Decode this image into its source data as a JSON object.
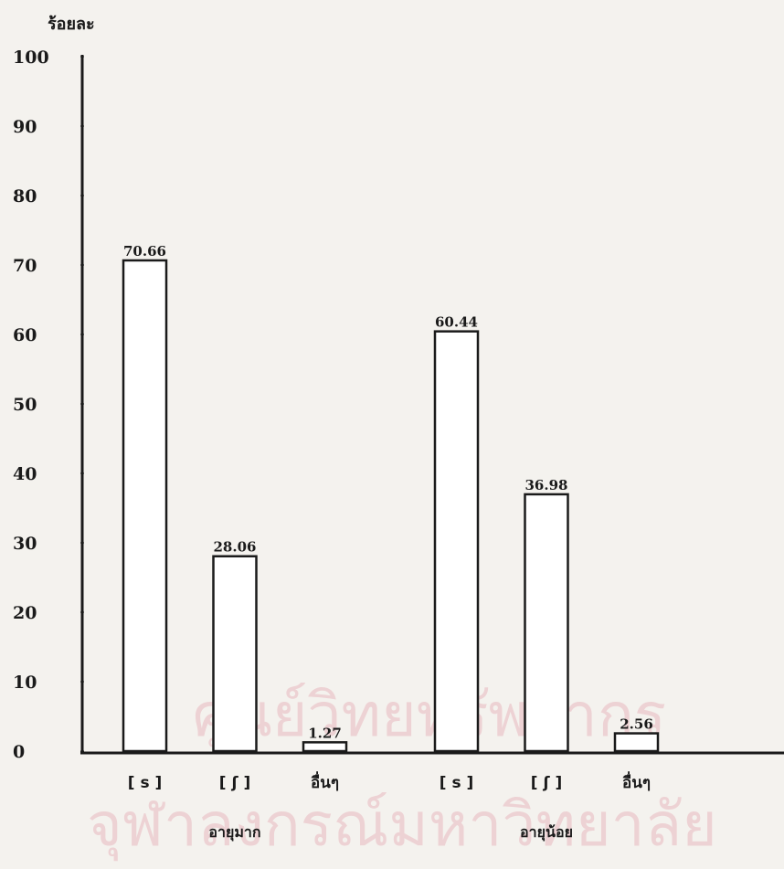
{
  "chart_data": {
    "type": "bar",
    "y_label": "ร้อยละ",
    "ylim": [
      0,
      100
    ],
    "yticks": [
      0,
      10,
      20,
      30,
      40,
      50,
      60,
      70,
      80,
      90,
      100
    ],
    "color": "#ffffff",
    "edge_color": "#1a1a1a",
    "groups": [
      {
        "name": "อายุมาก",
        "categories": [
          "[ s ]",
          "[ ʃ ]",
          "อื่นๆ"
        ],
        "values": [
          70.66,
          28.06,
          1.27
        ]
      },
      {
        "name": "อายุน้อย",
        "categories": [
          "[ s ]",
          "[ ʃ ]",
          "อื่นๆ"
        ],
        "values": [
          60.44,
          36.98,
          2.56
        ]
      }
    ],
    "watermark": [
      "ศูนย์วิทยทรัพยากร",
      "จุฬาลงกรณ์มหาวิทยาลัย"
    ]
  }
}
